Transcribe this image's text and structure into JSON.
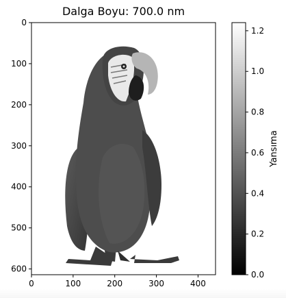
{
  "chart_data": {
    "type": "heatmap",
    "title": "Dalga Boyu: 700.0 nm",
    "x_ticks": [
      0,
      100,
      200,
      300,
      400
    ],
    "y_ticks": [
      0,
      100,
      200,
      300,
      400,
      500,
      600
    ],
    "x_range": [
      0,
      442
    ],
    "y_range": [
      0,
      614
    ],
    "colorbar": {
      "label": "Yansıma",
      "ticks": [
        "0.0",
        "0.2",
        "0.4",
        "0.6",
        "0.8",
        "1.0",
        "1.2"
      ],
      "range": [
        0.0,
        1.24
      ],
      "colormap": "gray"
    },
    "image_content": "grayscale reflectance image of a macaw parrot on white background"
  },
  "colors": {
    "background": "#ffffff",
    "axes": "#000000",
    "parrot_body": "#4a4a4a",
    "parrot_dark": "#2e2e2e",
    "parrot_light": "#8a8a8a"
  }
}
